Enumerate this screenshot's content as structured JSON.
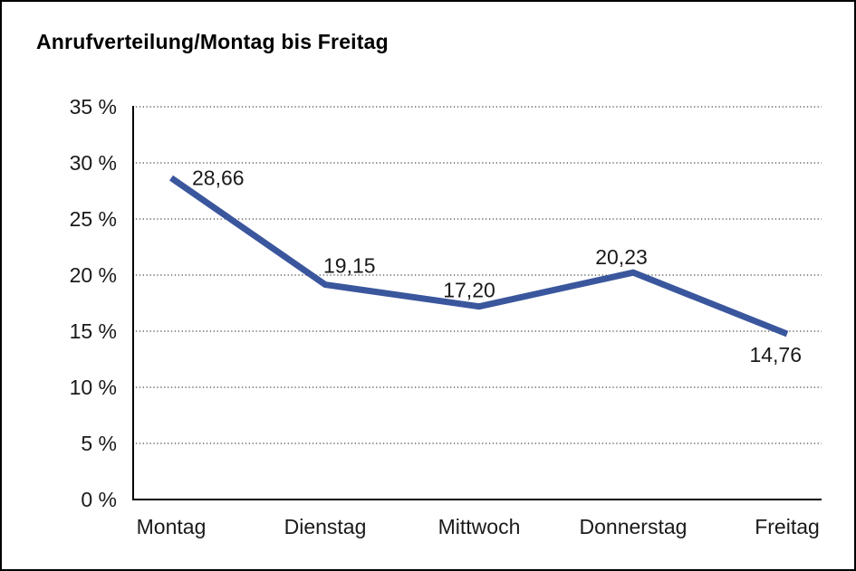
{
  "window": {
    "background": "#ffffff",
    "frame_border_color": "#000000"
  },
  "chart_data": {
    "type": "line",
    "title": "Anrufverteilung/Montag bis Freitag",
    "categories": [
      "Montag",
      "Dienstag",
      "Mittwoch",
      "Donnerstag",
      "Freitag"
    ],
    "series": [
      {
        "name": "Anrufverteilung",
        "values": [
          28.66,
          19.15,
          17.2,
          20.23,
          14.76
        ],
        "color": "#3A569D"
      }
    ],
    "data_labels": [
      "28,66",
      "19,15",
      "17,20",
      "20,23",
      "14,76"
    ],
    "xlabel": "",
    "ylabel": "",
    "ylim": [
      0,
      35
    ],
    "y_tick_step": 5,
    "y_tick_labels": [
      "0 %",
      "5 %",
      "10 %",
      "15 %",
      "20 %",
      "25 %",
      "30 %",
      "35 %"
    ],
    "grid": "horizontal-dotted",
    "gridline_color": "#4a4a4a",
    "axis_color": "#000000",
    "text_color": "#1a1a1a",
    "legend": "none"
  }
}
